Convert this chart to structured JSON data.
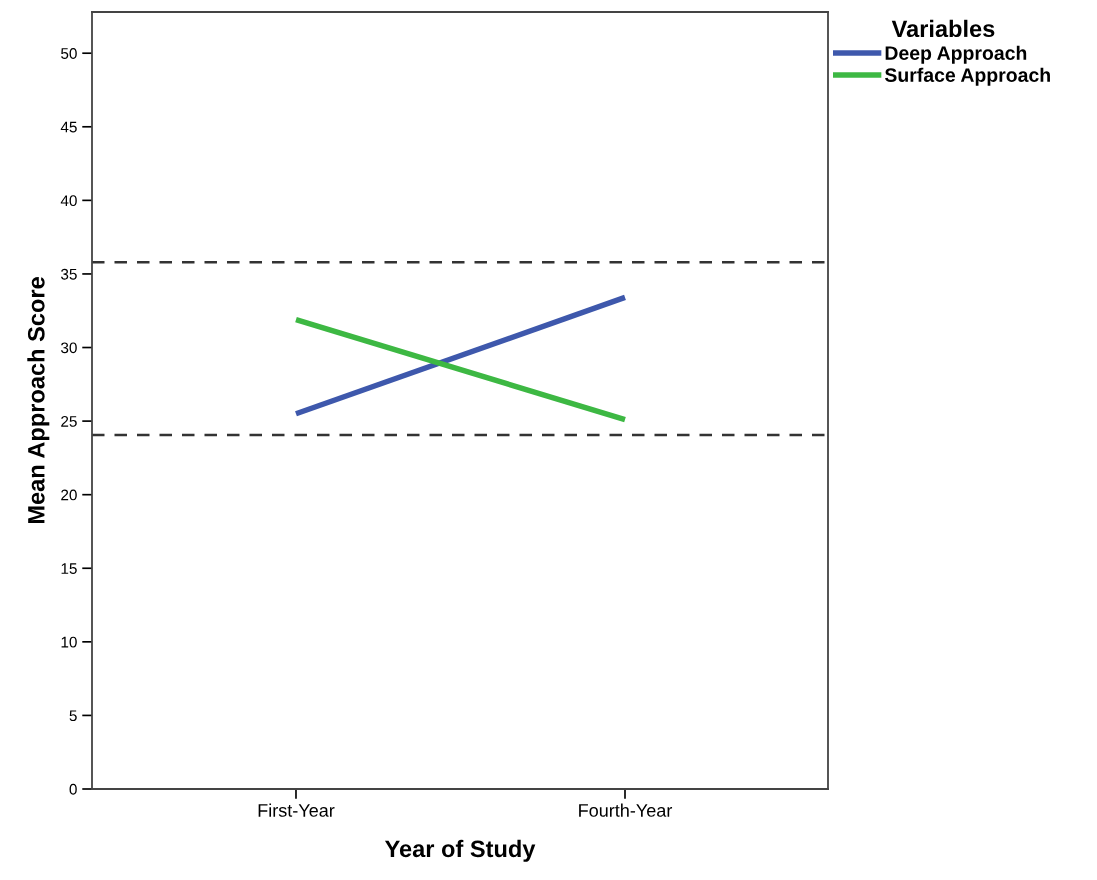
{
  "chart_data": {
    "type": "line",
    "xlabel": "Year of Study",
    "ylabel": "Mean Approach Score",
    "legend_title": "Variables",
    "categories": [
      "First-Year",
      "Fourth-Year"
    ],
    "series": [
      {
        "name": "Deep Approach",
        "color": "#3e58ac",
        "values": [
          25.5,
          33.4
        ]
      },
      {
        "name": "Surface Approach",
        "color": "#3db843",
        "values": [
          31.9,
          25.1
        ]
      }
    ],
    "ylim": [
      0,
      52.8
    ],
    "yticks": [
      0,
      5,
      10,
      15,
      20,
      25,
      30,
      35,
      40,
      45,
      50
    ],
    "ref_lines": [
      {
        "axis": "y",
        "value": 35.8,
        "label": null,
        "color": "#333333",
        "line_style": "dashed"
      },
      {
        "axis": "y",
        "value": 24.05,
        "label": null,
        "color": "#333333",
        "line_style": "dashed"
      }
    ],
    "legend": "top right",
    "grid": false,
    "marker": "none",
    "line_style": "solid"
  }
}
